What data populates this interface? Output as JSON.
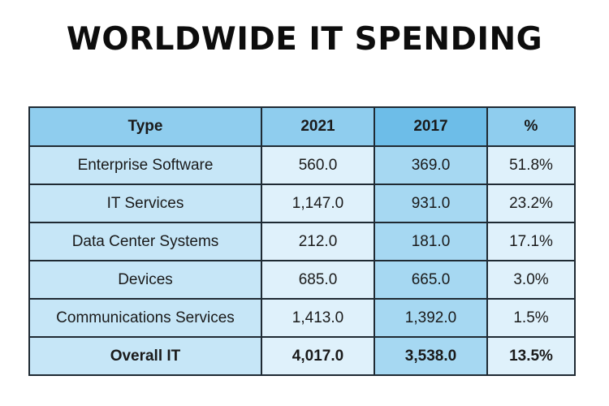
{
  "title": "WORLDWIDE IT SPENDING",
  "chart_data": {
    "type": "table",
    "columns": [
      "Type",
      "2021",
      "2017",
      "%"
    ],
    "rows": [
      {
        "type": "Enterprise Software",
        "y2021": "560.0",
        "y2017": "369.0",
        "pct": "51.8%"
      },
      {
        "type": "IT Services",
        "y2021": "1,147.0",
        "y2017": "931.0",
        "pct": "23.2%"
      },
      {
        "type": "Data Center Systems",
        "y2021": "212.0",
        "y2017": "181.0",
        "pct": "17.1%"
      },
      {
        "type": "Devices",
        "y2021": "685.0",
        "y2017": "665.0",
        "pct": "3.0%"
      },
      {
        "type": "Communications Services",
        "y2021": "1,413.0",
        "y2017": "1,392.0",
        "pct": "1.5%"
      },
      {
        "type": "Overall IT",
        "y2021": "4,017.0",
        "y2017": "3,538.0",
        "pct": "13.5%"
      }
    ]
  }
}
